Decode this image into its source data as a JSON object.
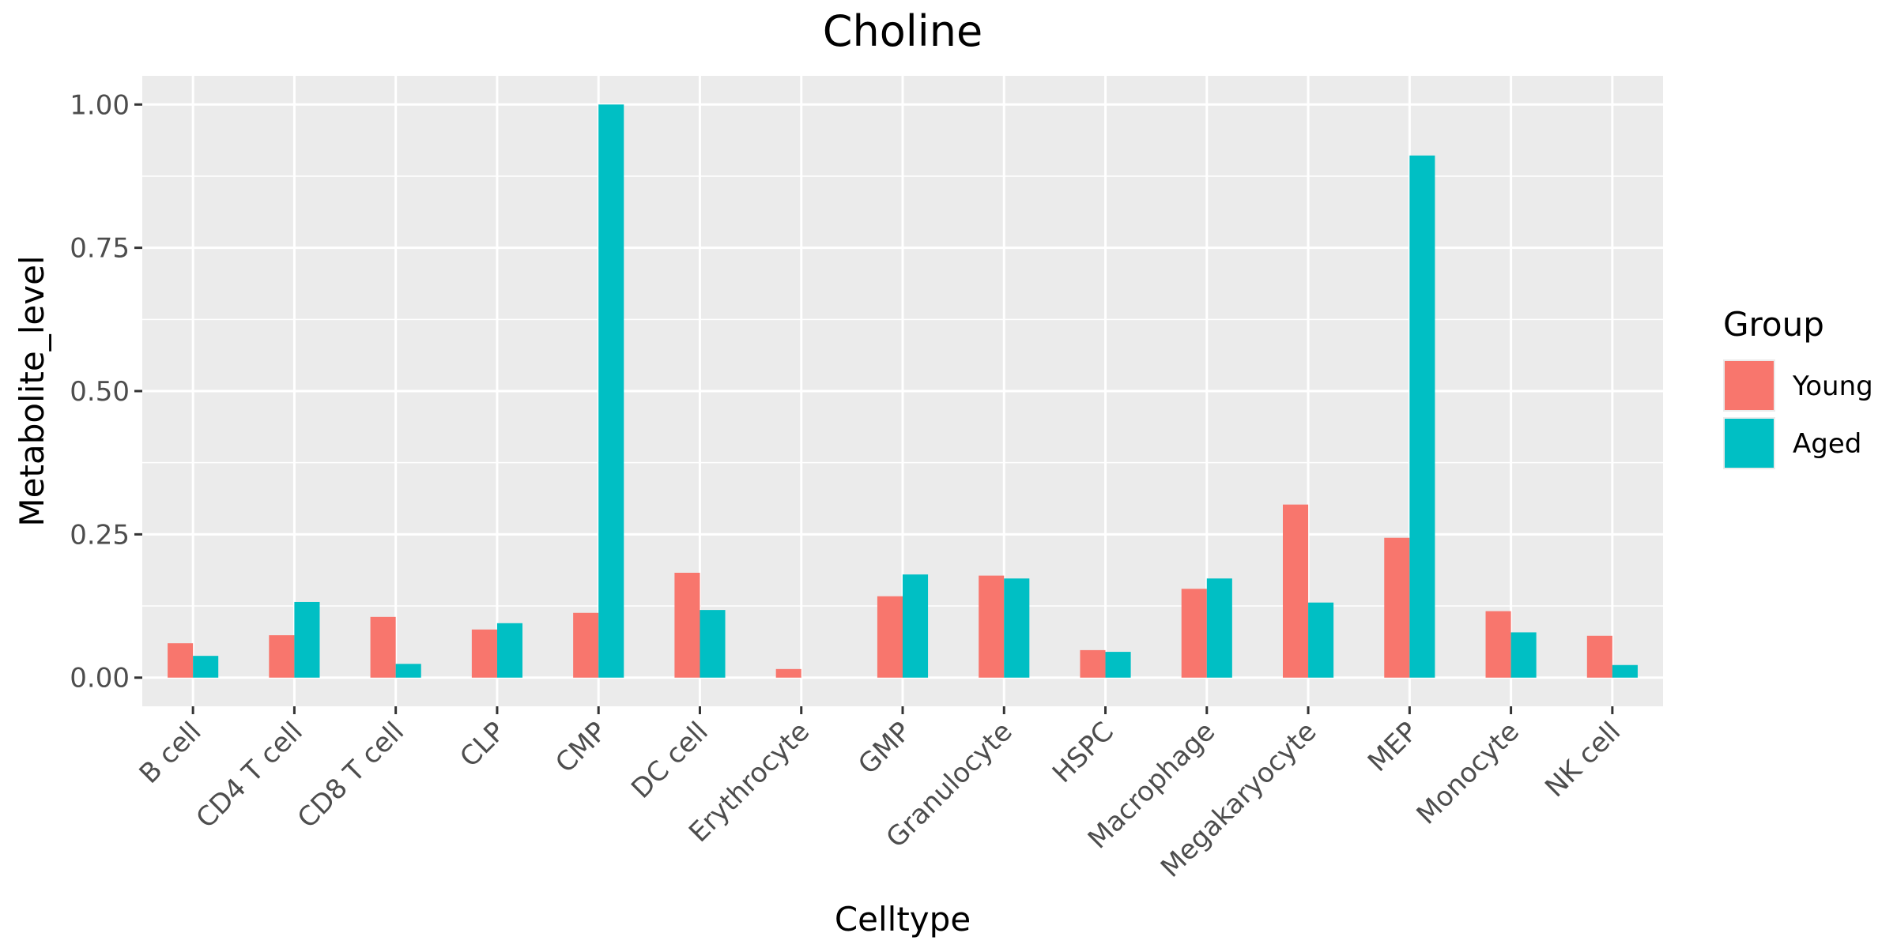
{
  "chart_data": {
    "type": "bar",
    "title": "Choline",
    "xlabel": "Celltype",
    "ylabel": "Metabolite_level",
    "categories": [
      "B cell",
      "CD4 T cell",
      "CD8 T cell",
      "CLP",
      "CMP",
      "DC cell",
      "Erythrocyte",
      "GMP",
      "Granulocyte",
      "HSPC",
      "Macrophage",
      "Megakaryocyte",
      "MEP",
      "Monocyte",
      "NK cell"
    ],
    "series": [
      {
        "name": "Young",
        "color": "#F8766D",
        "values": [
          0.06,
          0.074,
          0.106,
          0.084,
          0.113,
          0.183,
          0.015,
          0.142,
          0.178,
          0.048,
          0.155,
          0.302,
          0.244,
          0.116,
          0.073
        ]
      },
      {
        "name": "Aged",
        "color": "#00BFC4",
        "values": [
          0.038,
          0.132,
          0.024,
          0.095,
          1.0,
          0.118,
          null,
          0.18,
          0.173,
          0.045,
          0.173,
          0.131,
          0.911,
          0.079,
          0.022
        ]
      }
    ],
    "ylim": [
      -0.05,
      1.05
    ],
    "yticks": [
      "0.00",
      "0.25",
      "0.50",
      "0.75",
      "1.00"
    ],
    "grid": true,
    "legend": {
      "title": "Group",
      "position": "right"
    },
    "panel_background": "#EBEBEB",
    "x_tick_rotation": 45
  }
}
